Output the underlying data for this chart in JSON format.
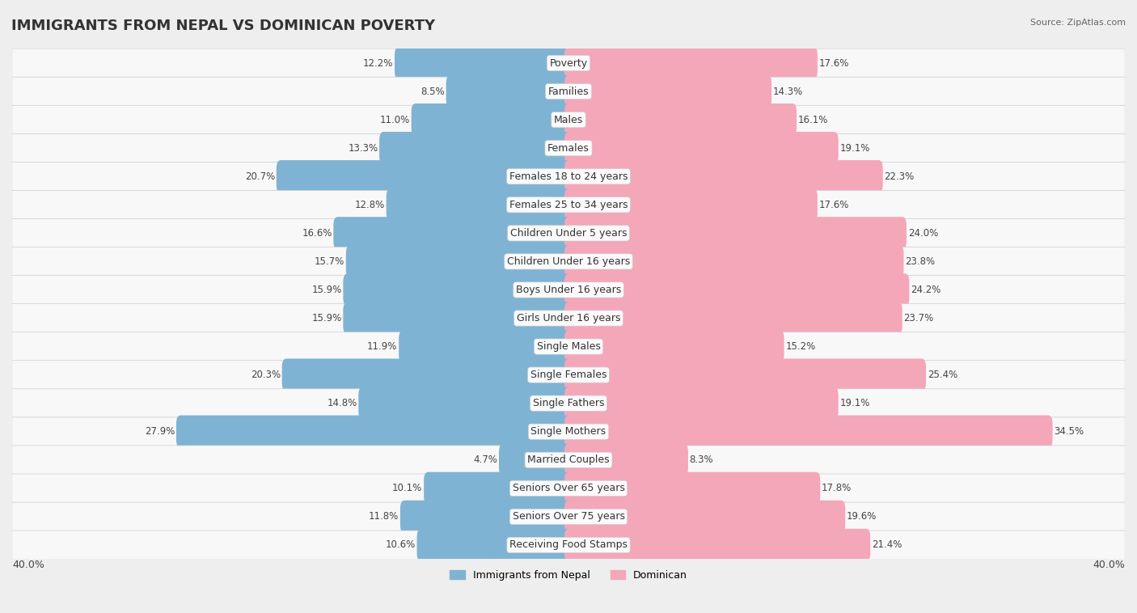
{
  "title": "IMMIGRANTS FROM NEPAL VS DOMINICAN POVERTY",
  "source": "Source: ZipAtlas.com",
  "categories": [
    "Poverty",
    "Families",
    "Males",
    "Females",
    "Females 18 to 24 years",
    "Females 25 to 34 years",
    "Children Under 5 years",
    "Children Under 16 years",
    "Boys Under 16 years",
    "Girls Under 16 years",
    "Single Males",
    "Single Females",
    "Single Fathers",
    "Single Mothers",
    "Married Couples",
    "Seniors Over 65 years",
    "Seniors Over 75 years",
    "Receiving Food Stamps"
  ],
  "nepal_values": [
    12.2,
    8.5,
    11.0,
    13.3,
    20.7,
    12.8,
    16.6,
    15.7,
    15.9,
    15.9,
    11.9,
    20.3,
    14.8,
    27.9,
    4.7,
    10.1,
    11.8,
    10.6
  ],
  "dominican_values": [
    17.6,
    14.3,
    16.1,
    19.1,
    22.3,
    17.6,
    24.0,
    23.8,
    24.2,
    23.7,
    15.2,
    25.4,
    19.1,
    34.5,
    8.3,
    17.8,
    19.6,
    21.4
  ],
  "nepal_color": "#7fb3d3",
  "dominican_color": "#f4a7b9",
  "nepal_label": "Immigrants from Nepal",
  "dominican_label": "Dominican",
  "axis_limit": 40.0,
  "background_color": "#eeeeee",
  "row_bg_light": "#f8f8f8",
  "title_fontsize": 13,
  "label_fontsize": 9,
  "value_fontsize": 8.5,
  "axis_label_fontsize": 9
}
